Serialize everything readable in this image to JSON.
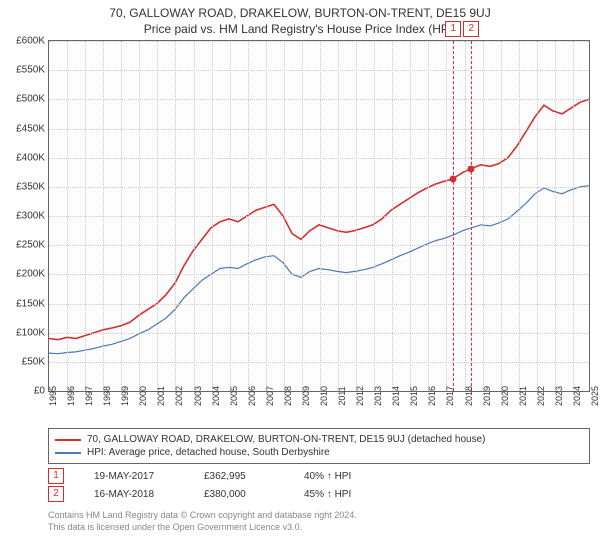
{
  "title": "70, GALLOWAY ROAD, DRAKELOW, BURTON-ON-TRENT, DE15 9UJ",
  "subtitle": "Price paid vs. HM Land Registry's House Price Index (HPI)",
  "chart": {
    "type": "line",
    "background_color": "#fdfdfd",
    "grid_color": "#cccccc",
    "border_color": "#666666",
    "marker_line_color": "#e91e63",
    "marker_box_border": "#d32f2f",
    "dot_color": "#d32f2f",
    "ylim": [
      0,
      600000
    ],
    "ytick_step": 50000,
    "yticks_labels": [
      "£0",
      "£50K",
      "£100K",
      "£150K",
      "£200K",
      "£250K",
      "£300K",
      "£350K",
      "£400K",
      "£450K",
      "£500K",
      "£550K",
      "£600K"
    ],
    "xlim": [
      1995,
      2025
    ],
    "xticks": [
      1995,
      1996,
      1997,
      1998,
      1999,
      2000,
      2001,
      2002,
      2003,
      2004,
      2005,
      2006,
      2007,
      2008,
      2009,
      2010,
      2011,
      2012,
      2013,
      2014,
      2015,
      2016,
      2017,
      2018,
      2019,
      2020,
      2021,
      2022,
      2023,
      2024,
      2025
    ],
    "series": [
      {
        "name": "70, GALLOWAY ROAD, DRAKELOW, BURTON-ON-TRENT, DE15 9UJ (detached house)",
        "color": "#d32f2f",
        "width": 1.6,
        "points": [
          [
            1995,
            90000
          ],
          [
            1995.5,
            88000
          ],
          [
            1996,
            92000
          ],
          [
            1996.5,
            90000
          ],
          [
            1997,
            95000
          ],
          [
            1997.5,
            100000
          ],
          [
            1998,
            105000
          ],
          [
            1998.5,
            108000
          ],
          [
            1999,
            112000
          ],
          [
            1999.5,
            118000
          ],
          [
            2000,
            130000
          ],
          [
            2000.5,
            140000
          ],
          [
            2001,
            150000
          ],
          [
            2001.5,
            165000
          ],
          [
            2002,
            185000
          ],
          [
            2002.5,
            215000
          ],
          [
            2003,
            240000
          ],
          [
            2003.5,
            260000
          ],
          [
            2004,
            280000
          ],
          [
            2004.5,
            290000
          ],
          [
            2005,
            295000
          ],
          [
            2005.5,
            290000
          ],
          [
            2006,
            300000
          ],
          [
            2006.5,
            310000
          ],
          [
            2007,
            315000
          ],
          [
            2007.5,
            320000
          ],
          [
            2008,
            300000
          ],
          [
            2008.5,
            270000
          ],
          [
            2009,
            260000
          ],
          [
            2009.5,
            275000
          ],
          [
            2010,
            285000
          ],
          [
            2010.5,
            280000
          ],
          [
            2011,
            275000
          ],
          [
            2011.5,
            272000
          ],
          [
            2012,
            275000
          ],
          [
            2012.5,
            280000
          ],
          [
            2013,
            285000
          ],
          [
            2013.5,
            295000
          ],
          [
            2014,
            310000
          ],
          [
            2014.5,
            320000
          ],
          [
            2015,
            330000
          ],
          [
            2015.5,
            340000
          ],
          [
            2016,
            348000
          ],
          [
            2016.5,
            355000
          ],
          [
            2017,
            360000
          ],
          [
            2017.38,
            362995
          ],
          [
            2017.5,
            365000
          ],
          [
            2018,
            375000
          ],
          [
            2018.37,
            380000
          ],
          [
            2018.5,
            382000
          ],
          [
            2019,
            388000
          ],
          [
            2019.5,
            385000
          ],
          [
            2020,
            390000
          ],
          [
            2020.5,
            400000
          ],
          [
            2021,
            420000
          ],
          [
            2021.5,
            445000
          ],
          [
            2022,
            470000
          ],
          [
            2022.5,
            490000
          ],
          [
            2023,
            480000
          ],
          [
            2023.5,
            475000
          ],
          [
            2024,
            485000
          ],
          [
            2024.5,
            495000
          ],
          [
            2025,
            500000
          ]
        ]
      },
      {
        "name": "HPI: Average price, detached house, South Derbyshire",
        "color": "#4a7ab8",
        "width": 1.2,
        "points": [
          [
            1995,
            65000
          ],
          [
            1995.5,
            64000
          ],
          [
            1996,
            66000
          ],
          [
            1996.5,
            67000
          ],
          [
            1997,
            70000
          ],
          [
            1997.5,
            73000
          ],
          [
            1998,
            77000
          ],
          [
            1998.5,
            80000
          ],
          [
            1999,
            85000
          ],
          [
            1999.5,
            90000
          ],
          [
            2000,
            98000
          ],
          [
            2000.5,
            105000
          ],
          [
            2001,
            115000
          ],
          [
            2001.5,
            125000
          ],
          [
            2002,
            140000
          ],
          [
            2002.5,
            160000
          ],
          [
            2003,
            175000
          ],
          [
            2003.5,
            190000
          ],
          [
            2004,
            200000
          ],
          [
            2004.5,
            210000
          ],
          [
            2005,
            212000
          ],
          [
            2005.5,
            210000
          ],
          [
            2006,
            218000
          ],
          [
            2006.5,
            225000
          ],
          [
            2007,
            230000
          ],
          [
            2007.5,
            232000
          ],
          [
            2008,
            220000
          ],
          [
            2008.5,
            200000
          ],
          [
            2009,
            195000
          ],
          [
            2009.5,
            205000
          ],
          [
            2010,
            210000
          ],
          [
            2010.5,
            208000
          ],
          [
            2011,
            205000
          ],
          [
            2011.5,
            203000
          ],
          [
            2012,
            205000
          ],
          [
            2012.5,
            208000
          ],
          [
            2013,
            212000
          ],
          [
            2013.5,
            218000
          ],
          [
            2014,
            225000
          ],
          [
            2014.5,
            232000
          ],
          [
            2015,
            238000
          ],
          [
            2015.5,
            245000
          ],
          [
            2016,
            252000
          ],
          [
            2016.5,
            258000
          ],
          [
            2017,
            262000
          ],
          [
            2017.5,
            268000
          ],
          [
            2018,
            275000
          ],
          [
            2018.5,
            280000
          ],
          [
            2019,
            285000
          ],
          [
            2019.5,
            283000
          ],
          [
            2020,
            288000
          ],
          [
            2020.5,
            295000
          ],
          [
            2021,
            308000
          ],
          [
            2021.5,
            322000
          ],
          [
            2022,
            338000
          ],
          [
            2022.5,
            348000
          ],
          [
            2023,
            342000
          ],
          [
            2023.5,
            338000
          ],
          [
            2024,
            345000
          ],
          [
            2024.5,
            350000
          ],
          [
            2025,
            352000
          ]
        ]
      }
    ],
    "sales_markers": [
      {
        "num": "1",
        "x": 2017.38,
        "y": 362995
      },
      {
        "num": "2",
        "x": 2018.37,
        "y": 380000
      }
    ]
  },
  "legend": {
    "items": [
      {
        "label": "70, GALLOWAY ROAD, DRAKELOW, BURTON-ON-TRENT, DE15 9UJ (detached house)",
        "color": "#d32f2f"
      },
      {
        "label": "HPI: Average price, detached house, South Derbyshire",
        "color": "#4a7ab8"
      }
    ]
  },
  "sales": [
    {
      "num": "1",
      "date": "19-MAY-2017",
      "price": "£362,995",
      "hpi": "40% ↑ HPI"
    },
    {
      "num": "2",
      "date": "16-MAY-2018",
      "price": "£380,000",
      "hpi": "45% ↑ HPI"
    }
  ],
  "footer": {
    "line1": "Contains HM Land Registry data © Crown copyright and database right 2024.",
    "line2": "This data is licensed under the Open Government Licence v3.0."
  }
}
